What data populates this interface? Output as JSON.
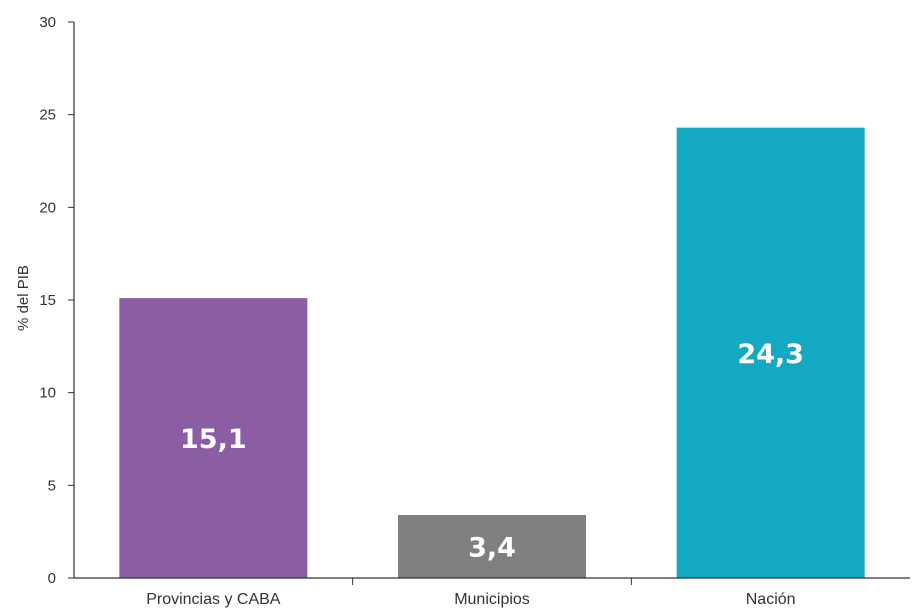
{
  "chart_data": {
    "type": "bar",
    "title": "",
    "xlabel": "",
    "ylabel": "% del PIB",
    "ylim": [
      0,
      30
    ],
    "yticks": [
      0,
      5,
      10,
      15,
      20,
      25,
      30
    ],
    "grid": false,
    "legend": "none",
    "categories": [
      "Provincias y CABA",
      "Municipios",
      "Nación"
    ],
    "values": [
      15.1,
      3.4,
      24.3
    ],
    "data_labels": [
      "15,1",
      "3,4",
      "24,3"
    ],
    "colors": [
      "#8b5ea3",
      "#808080",
      "#13a9c3"
    ]
  }
}
